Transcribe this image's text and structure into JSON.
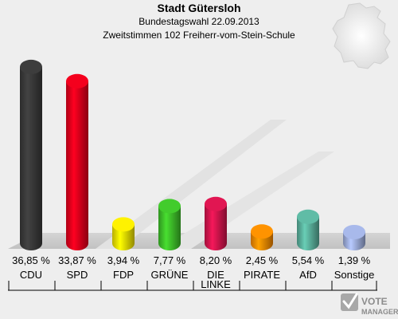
{
  "title": "Stadt Gütersloh",
  "subtitle_1": "Bundestagswahl 22.09.2013",
  "subtitle_2": "Zweitstimmen 102 Freiherr-vom-Stein-Schule",
  "logo": {
    "line1": "VOTE",
    "line2": "MANAGER",
    "icon": "checkmark-ballot-icon"
  },
  "chart_data": {
    "type": "bar",
    "categories": [
      "CDU",
      "SPD",
      "FDP",
      "GRÜNE",
      "DIE LINKE",
      "PIRATE",
      "AfD",
      "Sonstige"
    ],
    "values": [
      36.85,
      33.87,
      3.94,
      7.77,
      8.2,
      2.45,
      5.54,
      1.39
    ],
    "value_labels": [
      "36,85 %",
      "33,87 %",
      "3,94 %",
      "7,77 %",
      "8,20 %",
      "2,45 %",
      "5,54 %",
      "1,39 %"
    ],
    "colors": [
      "#3a3a3a",
      "#e8001c",
      "#f5e600",
      "#3fc22a",
      "#d6154e",
      "#ff8c00",
      "#5bb39e",
      "#a0b0e0"
    ],
    "unit": "%",
    "ylim": [
      0,
      40
    ]
  }
}
